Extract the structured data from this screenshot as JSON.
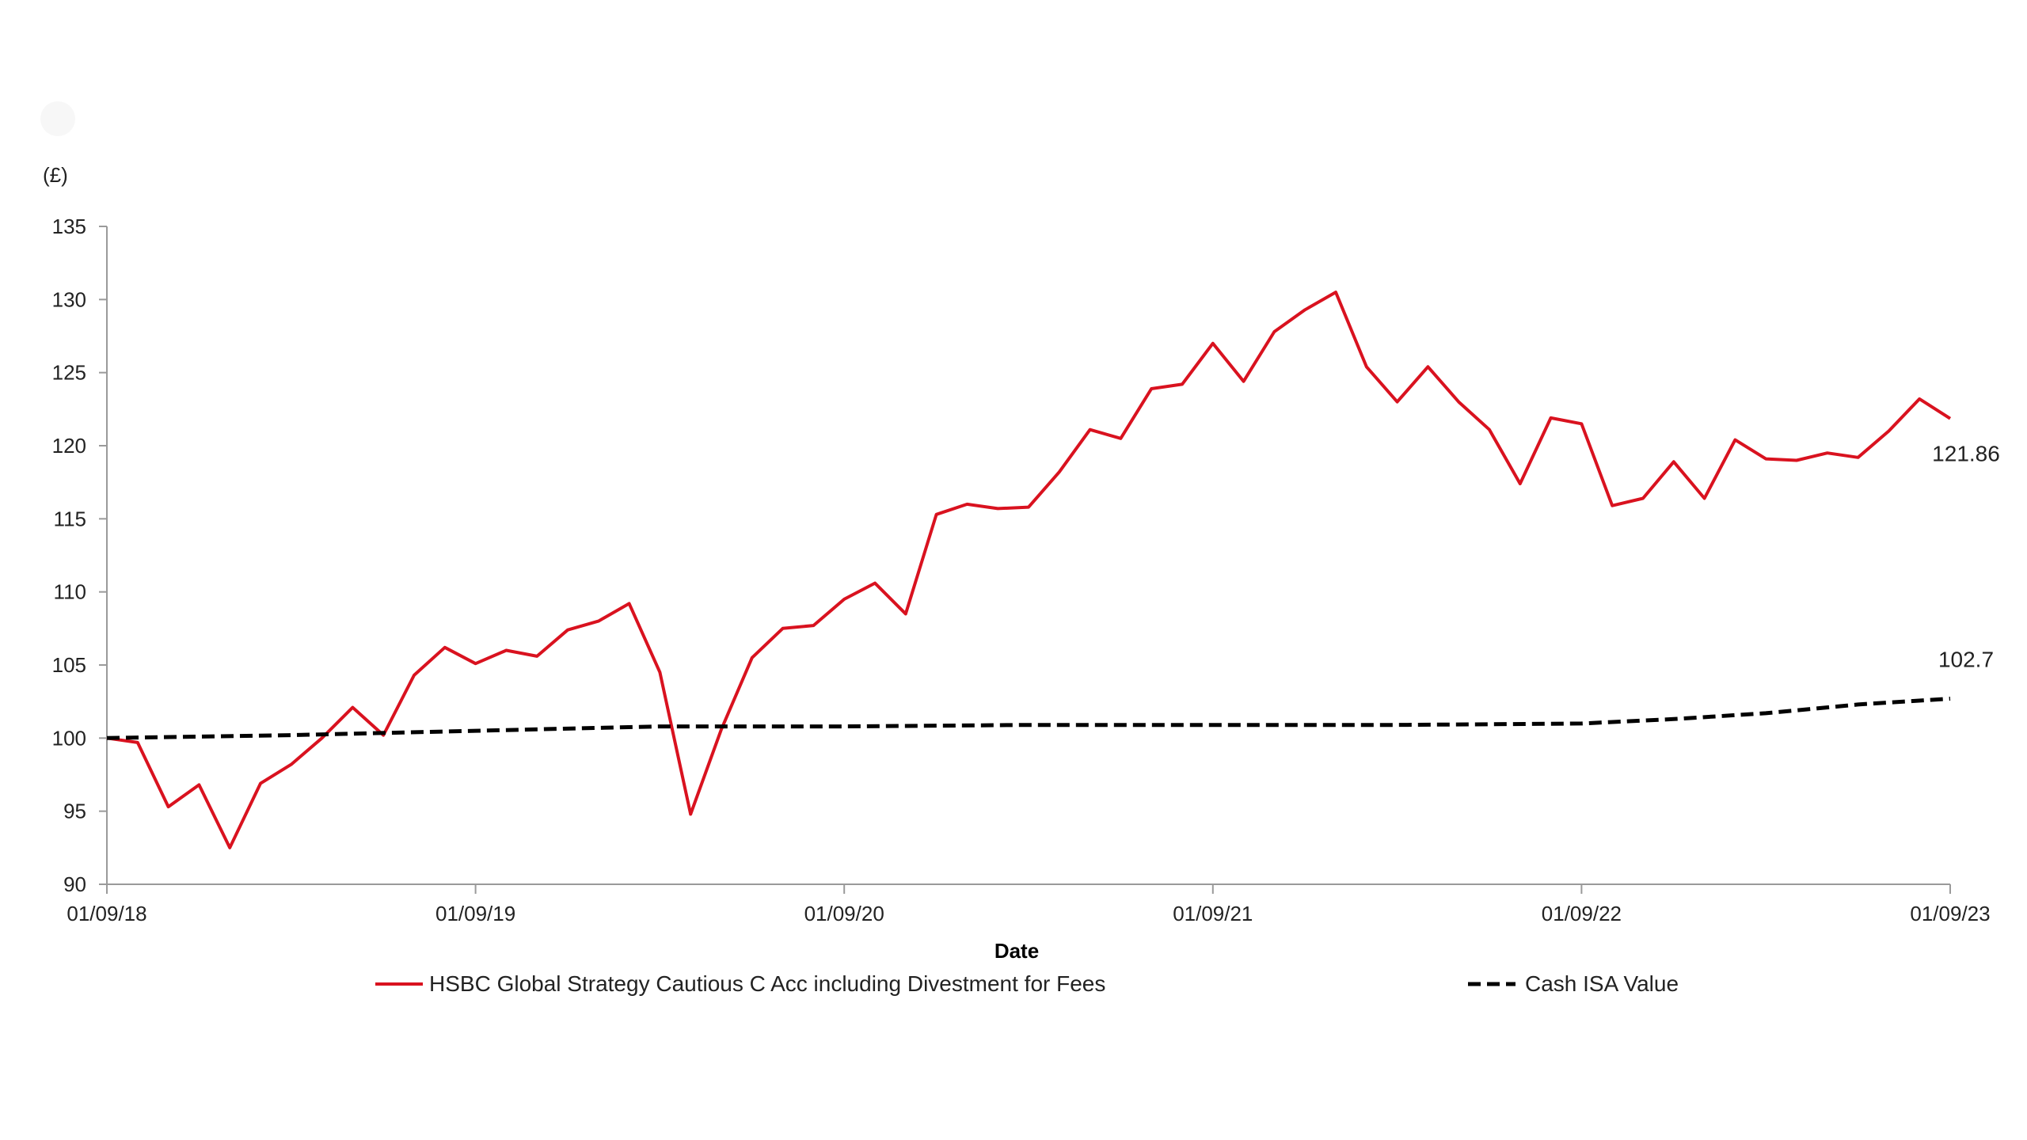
{
  "chart_data": {
    "type": "line",
    "title": "",
    "y_unit_label": "(£)",
    "xlabel": "Date",
    "ylabel": "",
    "ylim": [
      90,
      135
    ],
    "y_ticks": [
      90,
      95,
      100,
      105,
      110,
      115,
      120,
      125,
      130,
      135
    ],
    "y_tick_labels": [
      "90",
      "95",
      "100",
      "105",
      "110",
      "115",
      "120",
      "125",
      "130",
      "135"
    ],
    "x_range": [
      0,
      60
    ],
    "x_ticks": [
      0,
      12,
      24,
      36,
      48,
      60
    ],
    "x_tick_labels": [
      "01/09/18",
      "01/09/19",
      "01/09/20",
      "01/09/21",
      "01/09/22",
      "01/09/23"
    ],
    "grid": false,
    "legend_position": "bottom",
    "series": [
      {
        "name": "HSBC Global Strategy Cautious C Acc including Divestment for Fees",
        "color": "#d9121f",
        "style": "solid",
        "end_label": "121.86",
        "x": [
          0,
          1,
          2,
          3,
          4,
          5,
          6,
          7,
          8,
          9,
          10,
          11,
          12,
          13,
          14,
          15,
          16,
          17,
          18,
          19,
          20,
          21,
          22,
          23,
          24,
          25,
          26,
          27,
          28,
          29,
          30,
          31,
          32,
          33,
          34,
          35,
          36,
          37,
          38,
          39,
          40,
          41,
          42,
          43,
          44,
          45,
          46,
          47,
          48,
          49,
          50,
          51,
          52,
          53,
          54,
          55,
          56,
          57,
          58,
          59,
          60
        ],
        "values": [
          100.0,
          99.7,
          95.3,
          96.8,
          92.5,
          96.9,
          98.2,
          100.0,
          102.1,
          100.2,
          104.3,
          106.2,
          105.1,
          106.0,
          105.6,
          107.4,
          108.0,
          109.2,
          104.5,
          94.8,
          100.6,
          105.5,
          107.5,
          107.7,
          109.5,
          110.6,
          108.5,
          115.3,
          116.0,
          115.7,
          115.8,
          118.2,
          121.1,
          120.5,
          123.9,
          124.2,
          127.0,
          124.4,
          127.8,
          129.3,
          130.5,
          125.4,
          123.0,
          125.4,
          123.0,
          121.1,
          117.4,
          121.9,
          121.5,
          115.9,
          116.4,
          118.9,
          116.4,
          120.4,
          119.1,
          119.0,
          119.5,
          119.2,
          121.0,
          123.2,
          121.86
        ]
      },
      {
        "name": "Cash ISA Value",
        "color": "#000000",
        "style": "dashed",
        "end_label": "102.7",
        "x": [
          0,
          6,
          12,
          18,
          24,
          30,
          36,
          42,
          48,
          51,
          54,
          57,
          60
        ],
        "values": [
          100.0,
          100.2,
          100.5,
          100.8,
          100.8,
          100.9,
          100.9,
          100.9,
          101.0,
          101.3,
          101.7,
          102.3,
          102.7
        ]
      }
    ]
  }
}
